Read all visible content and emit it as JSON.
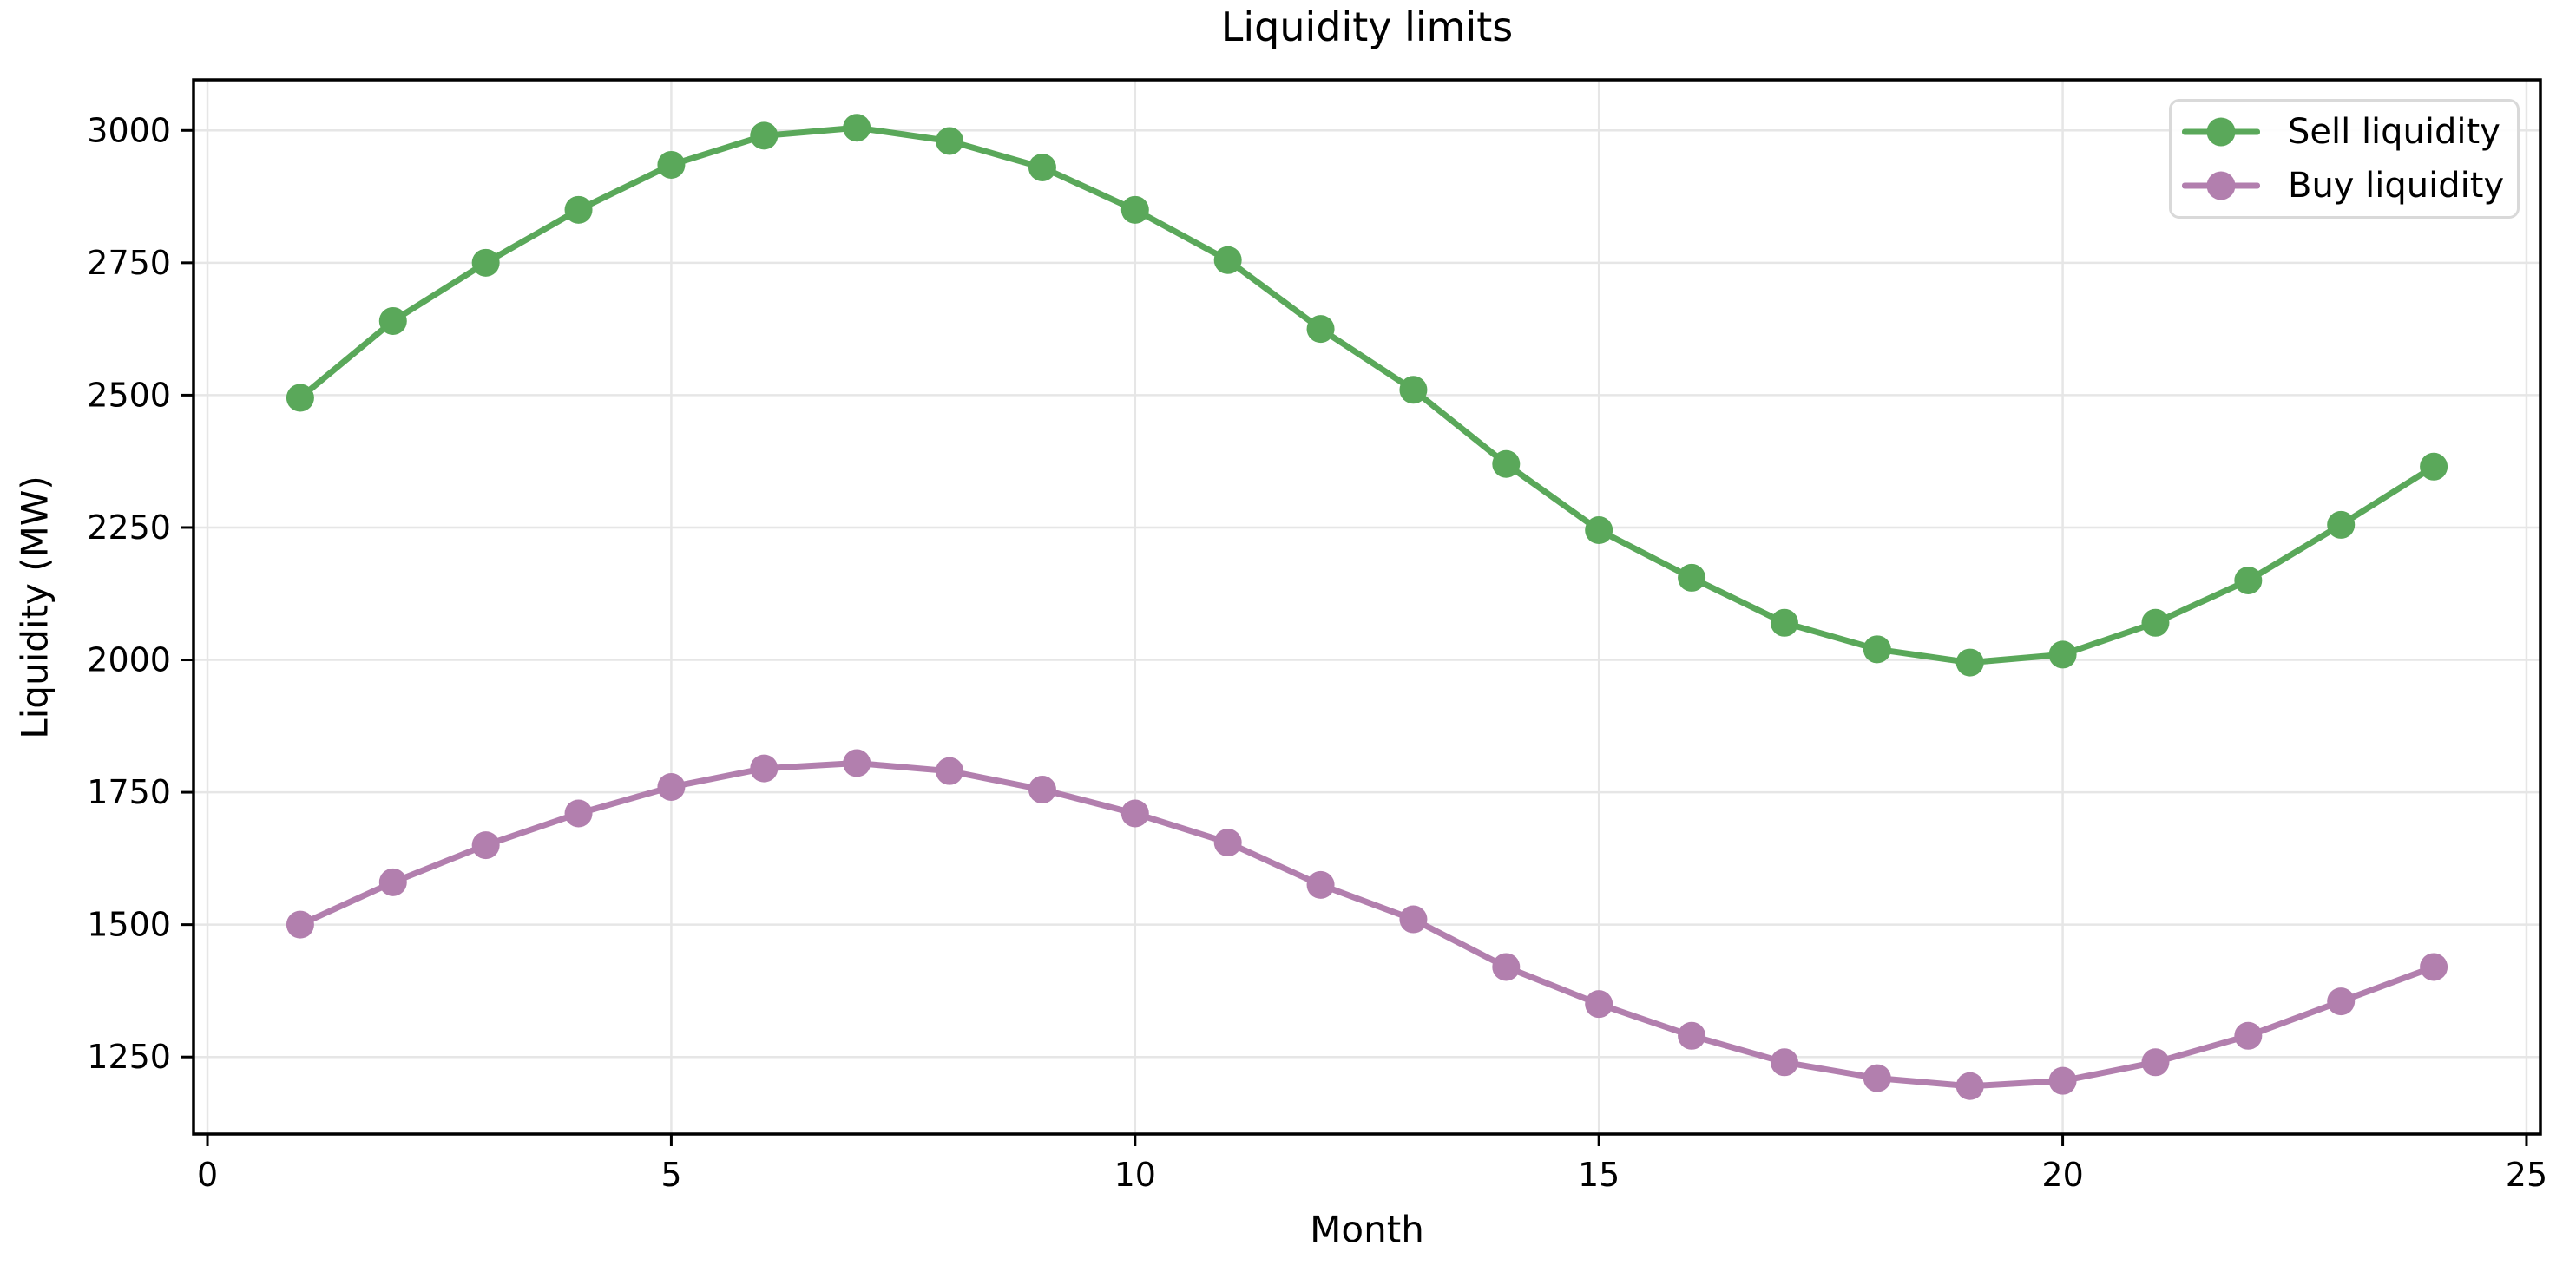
{
  "figure": {
    "title": "Liquidity limits",
    "background": "#ffffff"
  },
  "chart_data": {
    "type": "line",
    "title": "Liquidity limits",
    "xlabel": "Month",
    "ylabel": "Liquidity (MW)",
    "x": [
      1,
      2,
      3,
      4,
      5,
      6,
      7,
      8,
      9,
      10,
      11,
      12,
      13,
      14,
      15,
      16,
      17,
      18,
      19,
      20,
      21,
      22,
      23,
      24
    ],
    "series": [
      {
        "name": "Sell liquidity",
        "color": "#5aa85a",
        "values": [
          2495,
          2640,
          2750,
          2850,
          2935,
          2990,
          3005,
          2980,
          2930,
          2850,
          2755,
          2625,
          2510,
          2370,
          2245,
          2155,
          2070,
          2020,
          1995,
          2010,
          2070,
          2150,
          2255,
          2365
        ]
      },
      {
        "name": "Buy liquidity",
        "color": "#b27fae",
        "values": [
          1500,
          1580,
          1650,
          1710,
          1760,
          1795,
          1805,
          1790,
          1755,
          1710,
          1655,
          1575,
          1510,
          1420,
          1350,
          1290,
          1240,
          1210,
          1195,
          1205,
          1240,
          1290,
          1355,
          1420
        ]
      }
    ],
    "xlim": [
      -0.15,
      25.15
    ],
    "ylim": [
      1104.5,
      3095.5
    ],
    "xticks": [
      0,
      5,
      10,
      15,
      20,
      25
    ],
    "yticks": [
      1250,
      1500,
      1750,
      2000,
      2250,
      2500,
      2750,
      3000
    ],
    "grid": true,
    "legend_position": "upper right"
  },
  "legend": {
    "items": [
      {
        "label": "Sell liquidity",
        "color": "#5aa85a"
      },
      {
        "label": "Buy liquidity",
        "color": "#b27fae"
      }
    ]
  },
  "colors": {
    "grid": "#e6e6e6",
    "spine": "#000000",
    "tick": "#000000",
    "text": "#000000",
    "legend_border": "#d9d9d9"
  }
}
